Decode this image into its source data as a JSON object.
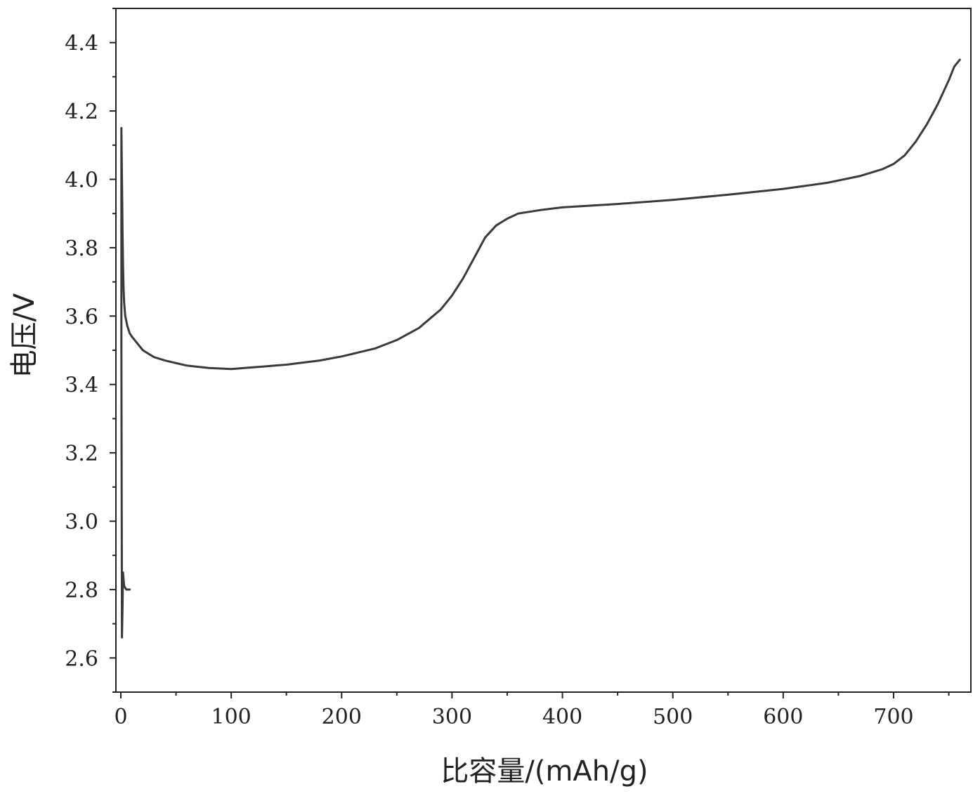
{
  "chart_data": {
    "type": "line",
    "title": "",
    "xlabel": "比容量/(mAh/g)",
    "ylabel": "电压/V",
    "xlim": [
      0,
      770
    ],
    "ylim": [
      2.5,
      4.5
    ],
    "x_ticks": [
      0,
      100,
      200,
      300,
      400,
      500,
      600,
      700
    ],
    "y_ticks": [
      2.6,
      2.8,
      3.0,
      3.2,
      3.4,
      3.6,
      3.8,
      4.0,
      4.2,
      4.4
    ],
    "x_tick_labels": [
      "0",
      "100",
      "200",
      "300",
      "400",
      "500",
      "600",
      "700"
    ],
    "y_tick_labels": [
      "2.6",
      "2.8",
      "3.0",
      "3.2",
      "3.4",
      "3.6",
      "3.8",
      "4.0",
      "4.2",
      "4.4"
    ],
    "grid": false,
    "line_color": "#3a3a3a",
    "series": [
      {
        "name": "",
        "x": [
          8,
          5,
          3,
          2,
          1.5,
          1,
          0.8,
          0.5,
          0.5,
          1,
          1.5,
          2,
          2.5,
          3,
          4,
          6,
          8,
          10,
          15,
          20,
          30,
          40,
          60,
          80,
          100,
          120,
          150,
          180,
          200,
          230,
          250,
          270,
          290,
          300,
          310,
          320,
          330,
          340,
          350,
          360,
          380,
          400,
          450,
          500,
          550,
          600,
          640,
          670,
          690,
          700,
          710,
          720,
          730,
          740,
          750,
          755,
          760
        ],
        "y": [
          2.8,
          2.8,
          2.81,
          2.85,
          2.75,
          2.66,
          3.0,
          3.5,
          4.15,
          4.0,
          3.85,
          3.75,
          3.68,
          3.64,
          3.6,
          3.57,
          3.55,
          3.54,
          3.52,
          3.5,
          3.48,
          3.47,
          3.455,
          3.448,
          3.445,
          3.45,
          3.458,
          3.47,
          3.482,
          3.505,
          3.53,
          3.565,
          3.62,
          3.66,
          3.71,
          3.77,
          3.83,
          3.865,
          3.885,
          3.9,
          3.91,
          3.918,
          3.928,
          3.94,
          3.955,
          3.972,
          3.99,
          4.01,
          4.03,
          4.045,
          4.07,
          4.11,
          4.16,
          4.22,
          4.29,
          4.33,
          4.35
        ]
      }
    ]
  }
}
